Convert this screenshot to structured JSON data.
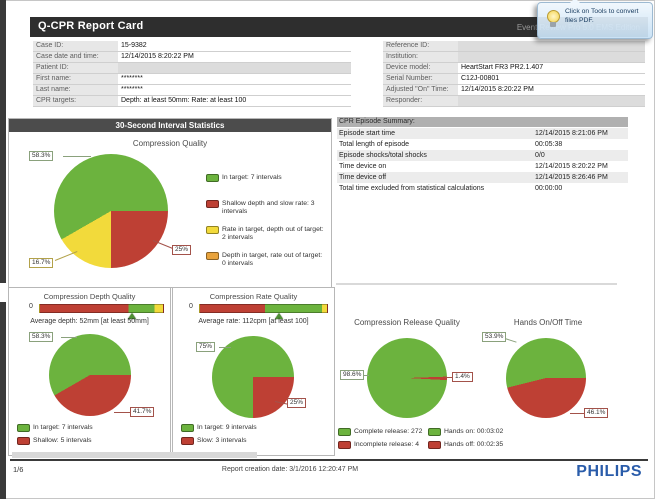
{
  "colors": {
    "green": "#6CB33E",
    "red": "#BE4034",
    "yellow": "#F2DA3B",
    "orange": "#E8A33D",
    "philips_blue": "#2A5CAA"
  },
  "titlebar": {
    "title": "Q-CPR Report Card",
    "app_name": "Event Review Pro 5.0 EMS Edition"
  },
  "tooltip": {
    "icon": "lightbulb-icon",
    "text": "Click on Tools to convert files PDF."
  },
  "case_info": {
    "left": [
      {
        "label": "Case ID:",
        "value": "15-9382"
      },
      {
        "label": "Case date and time:",
        "value": "12/14/2015 8:20:22 PM"
      },
      {
        "label": "Patient ID:",
        "value": ""
      },
      {
        "label": "First name:",
        "value": "********"
      },
      {
        "label": "Last name:",
        "value": "********"
      },
      {
        "label": "CPR targets:",
        "value": "Depth: at least 50mm: Rate: at least 100"
      }
    ],
    "right": [
      {
        "label": "Reference ID:",
        "value": ""
      },
      {
        "label": "Institution:",
        "value": ""
      },
      {
        "label": "Device model:",
        "value": "HeartStart FR3 PR2.1.407"
      },
      {
        "label": "Serial Number:",
        "value": "C12J-00801"
      },
      {
        "label": "Adjusted \"On\" Time:",
        "value": "12/14/2015 8:20:22 PM"
      },
      {
        "label": "Responder:",
        "value": ""
      }
    ]
  },
  "interval_stats": {
    "header": "30-Second Interval Statistics",
    "title": "Compression Quality",
    "chart_data": {
      "type": "pie",
      "from_deg": 90,
      "slices": [
        {
          "name": "Shallow depth and slow rate",
          "pct": 25,
          "color": "#BE4034"
        },
        {
          "name": "Rate in target, depth out of target",
          "pct": 16.7,
          "color": "#F2DA3B"
        },
        {
          "name": "In target",
          "pct": 58.3,
          "color": "#6CB33E"
        }
      ],
      "callouts": {
        "green": "58.3%",
        "red": "25%",
        "yellow": "16.7%"
      }
    },
    "legend": [
      {
        "color": "#6CB33E",
        "text": "In target: 7 intervals"
      },
      {
        "color": "#BE4034",
        "text": "Shallow depth and slow rate: 3 intervals"
      },
      {
        "color": "#F2DA3B",
        "text": "Rate in target, depth out of target: 2 intervals"
      },
      {
        "color": "#E8A33D",
        "text": "Depth in target, rate out of target: 0 intervals"
      }
    ]
  },
  "depth_quality": {
    "title": "Compression Depth Quality",
    "gauge": {
      "min_label": "0",
      "marker_pct": 75,
      "segments": [
        {
          "color": "#BE4034",
          "pct": 72
        },
        {
          "color": "#6CB33E",
          "pct": 21
        },
        {
          "color": "#F2DA3B",
          "pct": 7
        }
      ]
    },
    "average_text": "Average depth: 52mm  [at least 50mm]",
    "chart_data": {
      "type": "pie",
      "from_deg": 90,
      "slices": [
        {
          "name": "Shallow",
          "pct": 41.7,
          "color": "#BE4034"
        },
        {
          "name": "In target",
          "pct": 58.3,
          "color": "#6CB33E"
        }
      ],
      "callouts": {
        "green": "58.3%",
        "red": "41.7%"
      }
    },
    "legend": [
      {
        "color": "#6CB33E",
        "text": "In target: 7 intervals"
      },
      {
        "color": "#BE4034",
        "text": "Shallow: 5 intervals"
      }
    ]
  },
  "rate_quality": {
    "title": "Compression Rate Quality",
    "gauge": {
      "min_label": "0",
      "marker_pct": 62,
      "segments": [
        {
          "color": "#BE4034",
          "pct": 51
        },
        {
          "color": "#6CB33E",
          "pct": 45
        },
        {
          "color": "#F2DA3B",
          "pct": 4
        }
      ]
    },
    "average_text": "Average rate: 112cpm [at least 100]",
    "chart_data": {
      "type": "pie",
      "from_deg": 90,
      "slices": [
        {
          "name": "Slow",
          "pct": 25,
          "color": "#BE4034"
        },
        {
          "name": "In target",
          "pct": 75,
          "color": "#6CB33E"
        }
      ],
      "callouts": {
        "green": "75%",
        "red": "25%"
      }
    },
    "legend": [
      {
        "color": "#6CB33E",
        "text": "In target: 9 intervals"
      },
      {
        "color": "#BE4034",
        "text": "Slow: 3 intervals"
      }
    ]
  },
  "episode_summary": {
    "header": "CPR Episode Summary:",
    "rows": [
      {
        "label": "Episode start time",
        "value": "12/14/2015 8:21:06 PM"
      },
      {
        "label": "Total length of episode",
        "value": "00:05:38"
      },
      {
        "label": "Episode shocks/total shocks",
        "value": "0/0"
      },
      {
        "label": "Time device on",
        "value": "12/14/2015 8:20:22 PM"
      },
      {
        "label": "Time device off",
        "value": "12/14/2015 8:26:46 PM"
      },
      {
        "label": "Total time excluded from statistical calculations",
        "value": "00:00:00"
      }
    ]
  },
  "release_quality": {
    "title": "Compression Release Quality",
    "chart_data": {
      "type": "pie",
      "from_deg": 88,
      "slices": [
        {
          "name": "Incomplete release",
          "pct": 1.4,
          "color": "#BE4034"
        },
        {
          "name": "Complete release",
          "pct": 98.6,
          "color": "#6CB33E"
        }
      ],
      "callouts": {
        "green": "98.6%",
        "red": "1.4%"
      }
    },
    "legend": [
      {
        "color": "#6CB33E",
        "text": "Complete release: 272"
      },
      {
        "color": "#BE4034",
        "text": "Incomplete release: 4"
      }
    ]
  },
  "hands_time": {
    "title": "Hands On/Off Time",
    "chart_data": {
      "type": "pie",
      "from_deg": 90,
      "slices": [
        {
          "name": "Hands off",
          "pct": 46.1,
          "color": "#BE4034"
        },
        {
          "name": "Hands on",
          "pct": 53.9,
          "color": "#6CB33E"
        }
      ],
      "callouts": {
        "green": "53.9%",
        "red": "46.1%"
      }
    },
    "legend": [
      {
        "color": "#6CB33E",
        "text": "Hands on: 00:03:02"
      },
      {
        "color": "#BE4034",
        "text": "Hands off: 00:02:35"
      }
    ]
  },
  "footer": {
    "page": "1/6",
    "creation_text": "Report creation date: 3/1/2016 12:20:47 PM",
    "brand": "PHILIPS"
  }
}
